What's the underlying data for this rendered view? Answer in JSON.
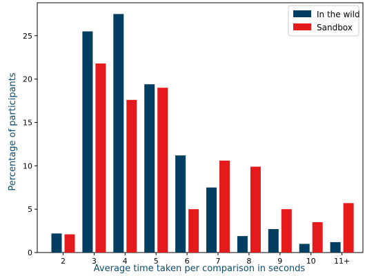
{
  "chart_data": {
    "type": "bar",
    "xlabel": "Average time taken per comparison in seconds",
    "ylabel": "Percentage of participants",
    "categories": [
      "2",
      "3",
      "4",
      "5",
      "6",
      "7",
      "8",
      "9",
      "10",
      "11+"
    ],
    "series": [
      {
        "name": "In the wild",
        "color": "#023e5f",
        "values": [
          2.2,
          25.5,
          27.5,
          19.4,
          11.2,
          7.5,
          1.9,
          2.7,
          1.0,
          1.2
        ]
      },
      {
        "name": "Sandbox",
        "color": "#e41a1c",
        "values": [
          2.1,
          21.8,
          17.6,
          19.0,
          5.0,
          10.6,
          9.9,
          5.0,
          3.5,
          5.7
        ]
      }
    ],
    "ylim": [
      0,
      28.8
    ],
    "yticks": [
      0,
      5,
      10,
      15,
      20,
      25
    ],
    "grid": false,
    "legend_position": "top-right",
    "axis_title_color": "#0b4a6b"
  }
}
